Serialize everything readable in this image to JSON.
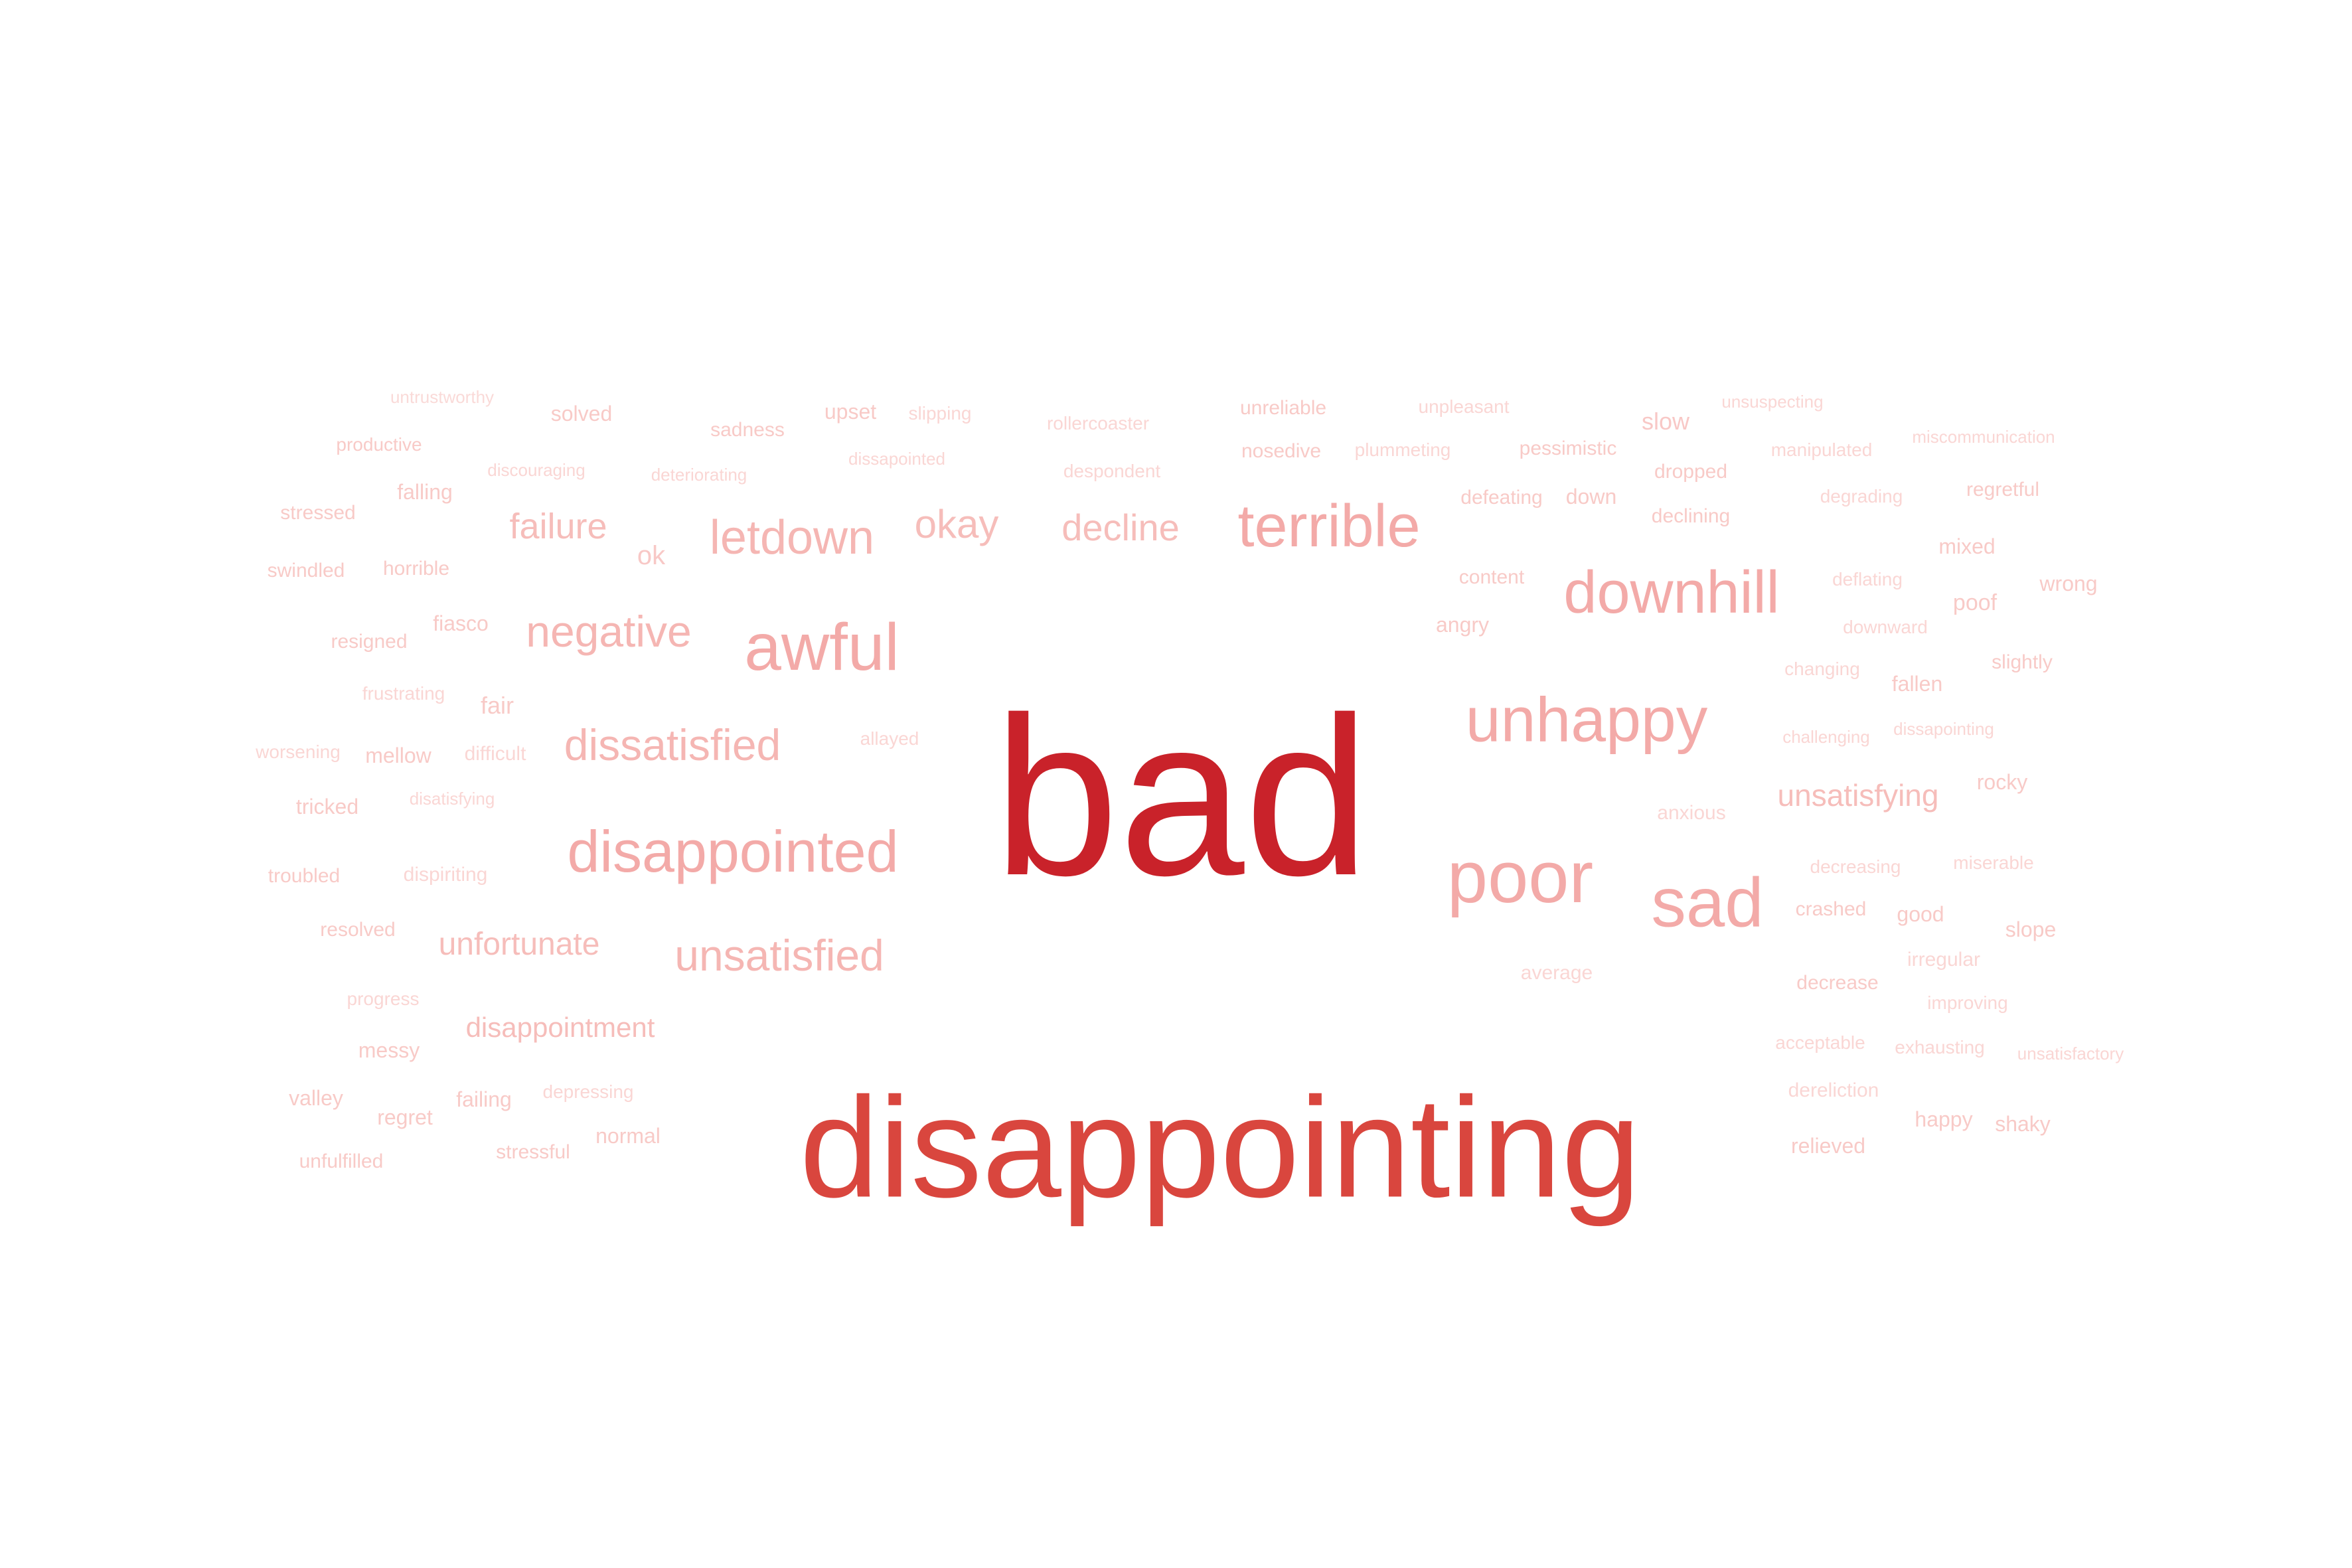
{
  "word_cloud": {
    "words": [
      {
        "text": "bad",
        "color": "#c9222a"
      },
      {
        "text": "disappointing",
        "color": "#d9463e"
      },
      {
        "text": "terrible",
        "color": "#f3aaa8"
      },
      {
        "text": "awful",
        "color": "#f3aaa8"
      },
      {
        "text": "downhill",
        "color": "#f3aaa8"
      },
      {
        "text": "unhappy",
        "color": "#f3aaa8"
      },
      {
        "text": "poor",
        "color": "#f3aaa8"
      },
      {
        "text": "sad",
        "color": "#f3aaa8"
      },
      {
        "text": "disappointed",
        "color": "#f3aaa8"
      },
      {
        "text": "letdown",
        "color": "#f5b6b3"
      },
      {
        "text": "dissatisfied",
        "color": "#f5b6b3"
      },
      {
        "text": "negative",
        "color": "#f5b6b3"
      },
      {
        "text": "unsatisfied",
        "color": "#f5b6b3"
      },
      {
        "text": "failure",
        "color": "#f6bdba"
      },
      {
        "text": "okay",
        "color": "#f6bdba"
      },
      {
        "text": "decline",
        "color": "#f6bdba"
      },
      {
        "text": "unfortunate",
        "color": "#f6bdba"
      },
      {
        "text": "unsatisfying",
        "color": "#f6bdba"
      },
      {
        "text": "disappointment",
        "color": "#f6bdba"
      },
      {
        "text": "ok",
        "color": "#f8c8c6"
      },
      {
        "text": "untrustworthy",
        "color": "#fadad8"
      },
      {
        "text": "solved",
        "color": "#f8cac7"
      },
      {
        "text": "upset",
        "color": "#f8cac7"
      },
      {
        "text": "slipping",
        "color": "#fad6d4"
      },
      {
        "text": "sadness",
        "color": "#f8cac7"
      },
      {
        "text": "rollercoaster",
        "color": "#fad6d4"
      },
      {
        "text": "unreliable",
        "color": "#f8cac7"
      },
      {
        "text": "unpleasant",
        "color": "#fad6d4"
      },
      {
        "text": "slow",
        "color": "#f8c8c6"
      },
      {
        "text": "unsuspecting",
        "color": "#fad6d4"
      },
      {
        "text": "productive",
        "color": "#f8cac7"
      },
      {
        "text": "discouraging",
        "color": "#fad6d4"
      },
      {
        "text": "deteriorating",
        "color": "#fad6d4"
      },
      {
        "text": "dissapointed",
        "color": "#fad6d4"
      },
      {
        "text": "despondent",
        "color": "#fad6d4"
      },
      {
        "text": "nosedive",
        "color": "#f8cac7"
      },
      {
        "text": "plummeting",
        "color": "#fad6d4"
      },
      {
        "text": "pessimistic",
        "color": "#f8cac7"
      },
      {
        "text": "dropped",
        "color": "#f8cac7"
      },
      {
        "text": "manipulated",
        "color": "#fad6d4"
      },
      {
        "text": "miscommunication",
        "color": "#fad6d4"
      },
      {
        "text": "falling",
        "color": "#f8cac7"
      },
      {
        "text": "stressed",
        "color": "#f8cac7"
      },
      {
        "text": "defeating",
        "color": "#f8cac7"
      },
      {
        "text": "down",
        "color": "#f8cac7"
      },
      {
        "text": "declining",
        "color": "#f8cac7"
      },
      {
        "text": "degrading",
        "color": "#fad6d4"
      },
      {
        "text": "regretful",
        "color": "#f8cac7"
      },
      {
        "text": "swindled",
        "color": "#f8cac7"
      },
      {
        "text": "horrible",
        "color": "#f8cac7"
      },
      {
        "text": "mixed",
        "color": "#f8cac7"
      },
      {
        "text": "content",
        "color": "#f8cac7"
      },
      {
        "text": "deflating",
        "color": "#fad6d4"
      },
      {
        "text": "wrong",
        "color": "#f8cac7"
      },
      {
        "text": "poof",
        "color": "#f8cac7"
      },
      {
        "text": "resigned",
        "color": "#f8cac7"
      },
      {
        "text": "fiasco",
        "color": "#f8cac7"
      },
      {
        "text": "angry",
        "color": "#f8cac7"
      },
      {
        "text": "downward",
        "color": "#fad6d4"
      },
      {
        "text": "slightly",
        "color": "#f8cac7"
      },
      {
        "text": "changing",
        "color": "#fad6d4"
      },
      {
        "text": "frustrating",
        "color": "#fad6d4"
      },
      {
        "text": "fair",
        "color": "#f8cac7"
      },
      {
        "text": "fallen",
        "color": "#f8cac7"
      },
      {
        "text": "worsening",
        "color": "#fad6d4"
      },
      {
        "text": "mellow",
        "color": "#f8cac7"
      },
      {
        "text": "difficult",
        "color": "#fad6d4"
      },
      {
        "text": "allayed",
        "color": "#fad6d4"
      },
      {
        "text": "challenging",
        "color": "#fad6d4"
      },
      {
        "text": "dissapointing",
        "color": "#fad6d4"
      },
      {
        "text": "tricked",
        "color": "#f8cac7"
      },
      {
        "text": "disatisfying",
        "color": "#fad6d4"
      },
      {
        "text": "rocky",
        "color": "#f8cac7"
      },
      {
        "text": "anxious",
        "color": "#fad6d4"
      },
      {
        "text": "troubled",
        "color": "#f8cac7"
      },
      {
        "text": "dispiriting",
        "color": "#fad6d4"
      },
      {
        "text": "decreasing",
        "color": "#fad6d4"
      },
      {
        "text": "miserable",
        "color": "#fad6d4"
      },
      {
        "text": "crashed",
        "color": "#f8cac7"
      },
      {
        "text": "good",
        "color": "#f8cac7"
      },
      {
        "text": "slope",
        "color": "#f8cac7"
      },
      {
        "text": "resolved",
        "color": "#f8cac7"
      },
      {
        "text": "irregular",
        "color": "#fad6d4"
      },
      {
        "text": "average",
        "color": "#fad6d4"
      },
      {
        "text": "decrease",
        "color": "#f8cac7"
      },
      {
        "text": "improving",
        "color": "#fad6d4"
      },
      {
        "text": "progress",
        "color": "#fad6d4"
      },
      {
        "text": "acceptable",
        "color": "#fad6d4"
      },
      {
        "text": "exhausting",
        "color": "#fad6d4"
      },
      {
        "text": "unsatisfactory",
        "color": "#fad6d4"
      },
      {
        "text": "messy",
        "color": "#f8cac7"
      },
      {
        "text": "dereliction",
        "color": "#fad6d4"
      },
      {
        "text": "valley",
        "color": "#f8cac7"
      },
      {
        "text": "failing",
        "color": "#f8cac7"
      },
      {
        "text": "depressing",
        "color": "#fad6d4"
      },
      {
        "text": "regret",
        "color": "#f8cac7"
      },
      {
        "text": "happy",
        "color": "#f8cac7"
      },
      {
        "text": "shaky",
        "color": "#f8cac7"
      },
      {
        "text": "normal",
        "color": "#f8cac7"
      },
      {
        "text": "relieved",
        "color": "#f8cac7"
      },
      {
        "text": "stressful",
        "color": "#f8cac7"
      },
      {
        "text": "unfulfilled",
        "color": "#f8cac7"
      }
    ]
  }
}
